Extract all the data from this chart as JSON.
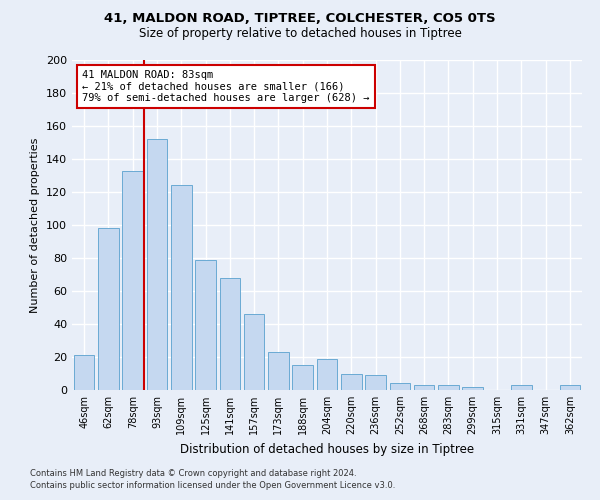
{
  "title1": "41, MALDON ROAD, TIPTREE, COLCHESTER, CO5 0TS",
  "title2": "Size of property relative to detached houses in Tiptree",
  "xlabel": "Distribution of detached houses by size in Tiptree",
  "ylabel": "Number of detached properties",
  "categories": [
    "46sqm",
    "62sqm",
    "78sqm",
    "93sqm",
    "109sqm",
    "125sqm",
    "141sqm",
    "157sqm",
    "173sqm",
    "188sqm",
    "204sqm",
    "220sqm",
    "236sqm",
    "252sqm",
    "268sqm",
    "283sqm",
    "299sqm",
    "315sqm",
    "331sqm",
    "347sqm",
    "362sqm"
  ],
  "values": [
    21,
    98,
    133,
    152,
    124,
    79,
    68,
    46,
    23,
    15,
    19,
    10,
    9,
    4,
    3,
    3,
    2,
    0,
    3,
    0,
    3
  ],
  "bar_color": "#c5d8f0",
  "bar_edge_color": "#6aaad4",
  "vline_color": "#cc0000",
  "annotation_text": "41 MALDON ROAD: 83sqm\n← 21% of detached houses are smaller (166)\n79% of semi-detached houses are larger (628) →",
  "annotation_box_color": "#ffffff",
  "annotation_box_edge": "#cc0000",
  "ylim": [
    0,
    200
  ],
  "yticks": [
    0,
    20,
    40,
    60,
    80,
    100,
    120,
    140,
    160,
    180,
    200
  ],
  "footer1": "Contains HM Land Registry data © Crown copyright and database right 2024.",
  "footer2": "Contains public sector information licensed under the Open Government Licence v3.0.",
  "bg_color": "#e8eef8",
  "plot_bg_color": "#e8eef8"
}
